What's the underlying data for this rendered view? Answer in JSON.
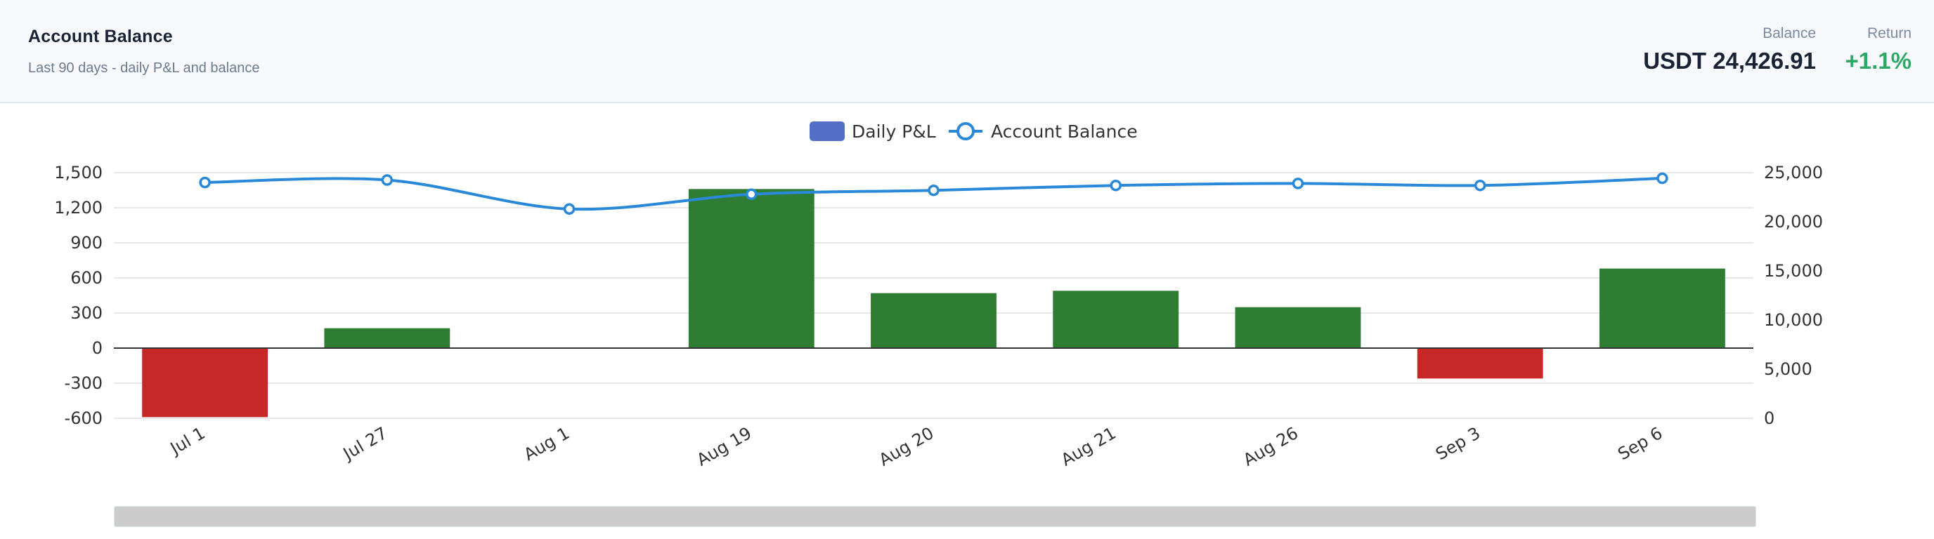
{
  "header": {
    "title": "Account Balance",
    "subtitle": "Last 90 days - daily P&L and balance",
    "balance_label": "Balance",
    "balance_value": "USDT 24,426.91",
    "return_label": "Return",
    "return_value": "+1.1%"
  },
  "colors": {
    "positive_bar": "#2e7d32",
    "negative_bar": "#c62828",
    "line": "#2a88d8",
    "legend_bar": "#5470c6",
    "return_text": "#2fa866"
  },
  "chart_data": {
    "type": "bar",
    "categories": [
      "Jul 1",
      "Jul 27",
      "Aug 1",
      "Aug 19",
      "Aug 20",
      "Aug 21",
      "Aug 26",
      "Sep 3",
      "Sep 6"
    ],
    "series": [
      {
        "name": "Daily P&L",
        "type": "bar",
        "axis": "left",
        "values": [
          -590,
          170,
          0,
          1360,
          470,
          490,
          350,
          -260,
          680
        ]
      },
      {
        "name": "Account Balance",
        "type": "line",
        "axis": "right",
        "values": [
          24000,
          24250,
          21300,
          22800,
          23200,
          23700,
          23900,
          23700,
          24426.91
        ]
      }
    ],
    "left_axis": {
      "ticks": [
        "1,500",
        "1,200",
        "900",
        "600",
        "300",
        "0",
        "-300",
        "-600"
      ],
      "min": -600,
      "max": 1500
    },
    "right_axis": {
      "ticks": [
        "25,000",
        "20,000",
        "15,000",
        "10,000",
        "5,000",
        "0"
      ],
      "min": 0,
      "max": 25000
    },
    "legend": {
      "position": "top-center",
      "items": [
        "Daily P&L",
        "Account Balance"
      ]
    },
    "grid": true,
    "data_zoom_slider": true
  }
}
